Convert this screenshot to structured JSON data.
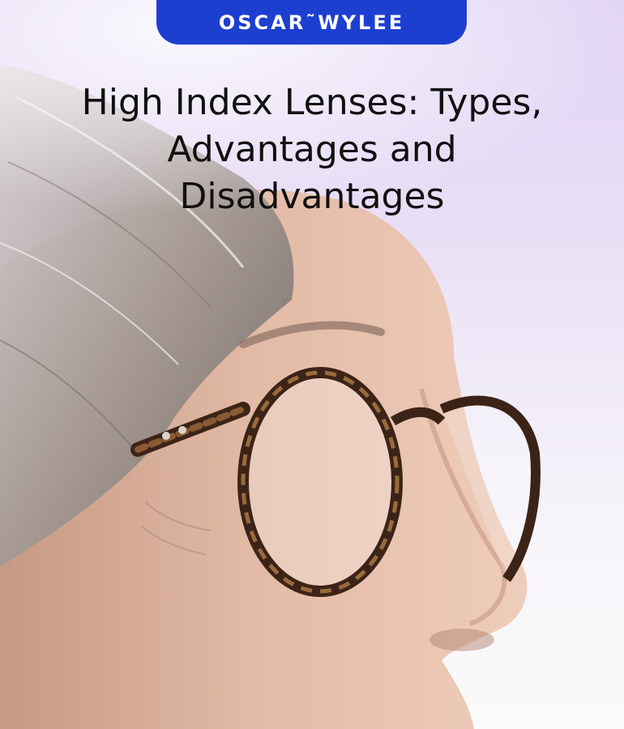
{
  "brand": {
    "name": "OSCAR˜WYLEE",
    "badge_color": "#1d3fd0"
  },
  "headline": {
    "text": "High Index Lenses: Types, Advantages and Disadvantages"
  },
  "photo": {
    "subject": "woman-wearing-tortoiseshell-glasses"
  },
  "colors": {
    "background_top": "#e2d6f5",
    "background_bottom": "#fafafa",
    "text": "#111111"
  }
}
